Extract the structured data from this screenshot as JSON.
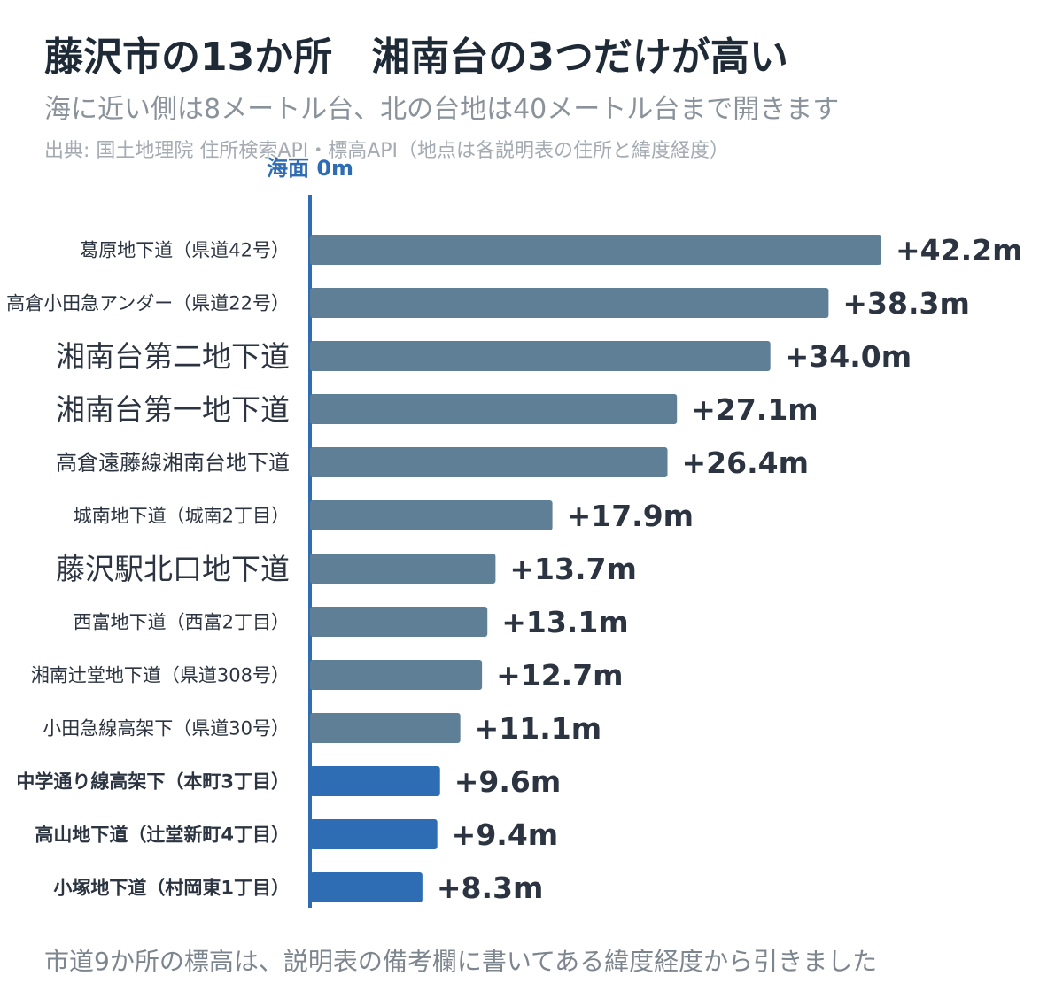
{
  "header": {
    "title": "藤沢市の13か所　湘南台の3つだけが高い",
    "subtitle": "海に近い側は8メートル台、北の台地は40メートル台まで開きます",
    "source": "出典: 国土地理院 住所検索API・標高API（地点は各説明表の住所と緯度経度）"
  },
  "footer": {
    "note": "市道9か所の標高は、説明表の備考欄に書いてある緯度経度から引きました"
  },
  "colors": {
    "default_bar": "#5e7f96",
    "low_bar": "#2e6db4",
    "axis_line": "#2e6db4"
  },
  "chart_data": {
    "type": "bar",
    "orientation": "horizontal",
    "title": "藤沢市の13か所　湘南台の3つだけが高い",
    "axis_label": "海面 0m",
    "unit": "m",
    "categories": [
      "葛原地下道（県道42号）",
      "高倉小田急アンダー（県道22号）",
      "湘南台第二地下道",
      "湘南台第一地下道",
      "高倉遠藤線湘南台地下道",
      "城南地下道（城南2丁目）",
      "藤沢駅北口地下道",
      "西富地下道（西富2丁目）",
      "湘南辻堂地下道（県道308号）",
      "小田急線高架下（県道30号）",
      "中学通り線高架下（本町3丁目）",
      "高山地下道（辻堂新町4丁目）",
      "小塚地下道（村岡東1丁目）"
    ],
    "values": [
      42.2,
      38.3,
      34.0,
      27.1,
      26.4,
      17.9,
      13.7,
      13.1,
      12.7,
      11.1,
      9.6,
      9.4,
      8.3
    ],
    "value_labels": [
      "+42.2m",
      "+38.3m",
      "+34.0m",
      "+27.1m",
      "+26.4m",
      "+17.9m",
      "+13.7m",
      "+13.1m",
      "+12.7m",
      "+11.1m",
      "+9.6m",
      "+9.4m",
      "+8.3m"
    ],
    "label_style": [
      "small",
      "small",
      "large",
      "large",
      "medium",
      "small",
      "large",
      "small",
      "small",
      "small",
      "bold",
      "bold",
      "bold"
    ],
    "highlight": [
      false,
      false,
      false,
      false,
      false,
      false,
      false,
      false,
      false,
      false,
      true,
      true,
      true
    ],
    "xlim": [
      0,
      42.2
    ],
    "grid": false,
    "legend": "none"
  }
}
